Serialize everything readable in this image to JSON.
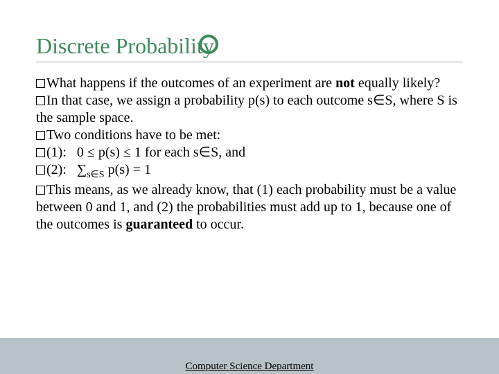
{
  "title": "Discrete Probability",
  "title_color": "#3d8a5a",
  "title_fontsize": 32,
  "body_fontsize": 20,
  "body_color": "#000000",
  "ring_border_color": "#3d8a5a",
  "underline_color": "#9caab2",
  "footer_band_color": "#b7c3c8",
  "footer_text": "Computer Science Department",
  "lines": [
    {
      "html": "What happens if the outcomes of an experiment are <b>not</b> equally likely?"
    },
    {
      "html": "In that case, we assign a probability p(s) to each outcome s∈S, where S is the sample space."
    },
    {
      "html": "Two conditions have to be met:"
    },
    {
      "html": "(1):&nbsp;&nbsp;&nbsp;0 ≤ p(s) ≤ 1 for each s∈S, and"
    },
    {
      "html": "(2):&nbsp;&nbsp;&nbsp;∑<span class=\"sub\">s∈S</span> p(s) = 1"
    },
    {
      "html": "This means, as we already know, that (1) each probability must be a value between 0 and 1, and (2) the probabilities must add up to 1, because one of the outcomes is <b>guaranteed</b> to occur."
    }
  ]
}
